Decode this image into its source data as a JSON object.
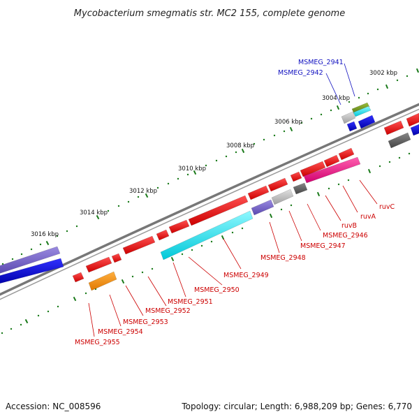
{
  "title": "Mycobacterium smegmatis str. MC2 155, complete genome",
  "footer": {
    "accession": "Accession: NC_008596",
    "summary": "Topology: circular; Length: 6,988,209 bp; Genes: 6,770"
  },
  "colors": {
    "background": "#ffffff",
    "backbone": "#888888",
    "ticks": "#1a7a1a",
    "label_forward": "#1010c0",
    "label_reverse": "#cc0000"
  },
  "position_labels": [
    "3002 kbp",
    "3004 kbp",
    "3006 kbp",
    "3008 kbp",
    "3010 kbp",
    "3012 kbp",
    "3014 kbp",
    "3016 kbp"
  ],
  "gene_labels": [
    "MSMEG_2941",
    "MSMEG_2942",
    "ruvC",
    "ruvA",
    "ruvB",
    "MSMEG_2946",
    "MSMEG_2947",
    "MSMEG_2948",
    "MSMEG_2949",
    "MSMEG_2950",
    "MSMEG_2951",
    "MSMEG_2952",
    "MSMEG_2953",
    "MSMEG_2954",
    "MSMEG_2955"
  ]
}
